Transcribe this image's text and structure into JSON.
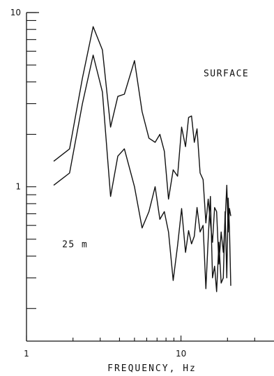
{
  "chart_data": {
    "type": "line",
    "title": "",
    "xlabel": "FREQUENCY, Hz",
    "ylabel": "",
    "xscale": "log",
    "yscale": "log",
    "xlim": [
      1,
      40
    ],
    "ylim": [
      0.13,
      10
    ],
    "grid": false,
    "x_tick_labels": [
      {
        "value": 1,
        "label": "1"
      },
      {
        "value": 10,
        "label": "10"
      }
    ],
    "y_tick_labels": [
      {
        "value": 1,
        "label": "1"
      },
      {
        "value": 10,
        "label": "10"
      }
    ],
    "x_minor_ticks": [
      2,
      3,
      4,
      5,
      6,
      7,
      8,
      9,
      20,
      30
    ],
    "y_minor_ticks": [
      0.2,
      0.3,
      0.4,
      0.5,
      0.6,
      0.7,
      0.8,
      0.9,
      2,
      3,
      4,
      5,
      6,
      7,
      8,
      9
    ],
    "annotations": [
      {
        "text": "SURFACE",
        "x": 14,
        "y": 4.3
      },
      {
        "text": "25 m",
        "x": 1.7,
        "y": 0.45
      }
    ],
    "series": [
      {
        "x": [
          1.5,
          1.9,
          2.3,
          2.7,
          3.1,
          3.5,
          3.9,
          4.3,
          5.0,
          5.6,
          6.2,
          6.8,
          7.3,
          7.8,
          8.3,
          8.9,
          9.5,
          10.1,
          10.7,
          11.2,
          11.7,
          12.2,
          12.7,
          13.3,
          13.9,
          14.5,
          15.0,
          15.5,
          16.0,
          16.5,
          17.0,
          17.6,
          18.2,
          18.8,
          19.3,
          19.8,
          20.2,
          20.6,
          21.0
        ],
        "y": [
          1.4,
          1.65,
          4.2,
          8.3,
          6.1,
          2.2,
          3.3,
          3.4,
          5.3,
          2.7,
          1.9,
          1.8,
          2.0,
          1.6,
          0.85,
          1.25,
          1.15,
          2.2,
          1.7,
          2.5,
          2.55,
          1.8,
          2.15,
          1.2,
          1.1,
          0.62,
          0.85,
          0.62,
          0.48,
          0.76,
          0.72,
          0.36,
          0.55,
          0.42,
          0.64,
          1.02,
          0.55,
          0.75,
          0.68
        ]
      },
      {
        "x": [
          1.5,
          1.9,
          2.3,
          2.7,
          3.1,
          3.5,
          3.9,
          4.3,
          5.0,
          5.6,
          6.2,
          6.8,
          7.3,
          7.8,
          8.3,
          8.9,
          9.5,
          10.1,
          10.7,
          11.2,
          11.7,
          12.2,
          12.7,
          13.3,
          13.9,
          14.5,
          15.0,
          15.5,
          16.0,
          16.5,
          17.0,
          17.6,
          18.2,
          18.8,
          19.3,
          19.8,
          20.2,
          20.6,
          21.0
        ],
        "y": [
          1.02,
          1.2,
          3.0,
          5.7,
          3.5,
          0.88,
          1.5,
          1.65,
          1.0,
          0.58,
          0.72,
          1.0,
          0.65,
          0.72,
          0.55,
          0.29,
          0.46,
          0.75,
          0.42,
          0.56,
          0.47,
          0.52,
          0.76,
          0.55,
          0.6,
          0.26,
          0.5,
          0.88,
          0.3,
          0.35,
          0.25,
          0.48,
          0.28,
          0.3,
          0.72,
          0.3,
          0.86,
          0.58,
          0.27
        ]
      }
    ]
  }
}
